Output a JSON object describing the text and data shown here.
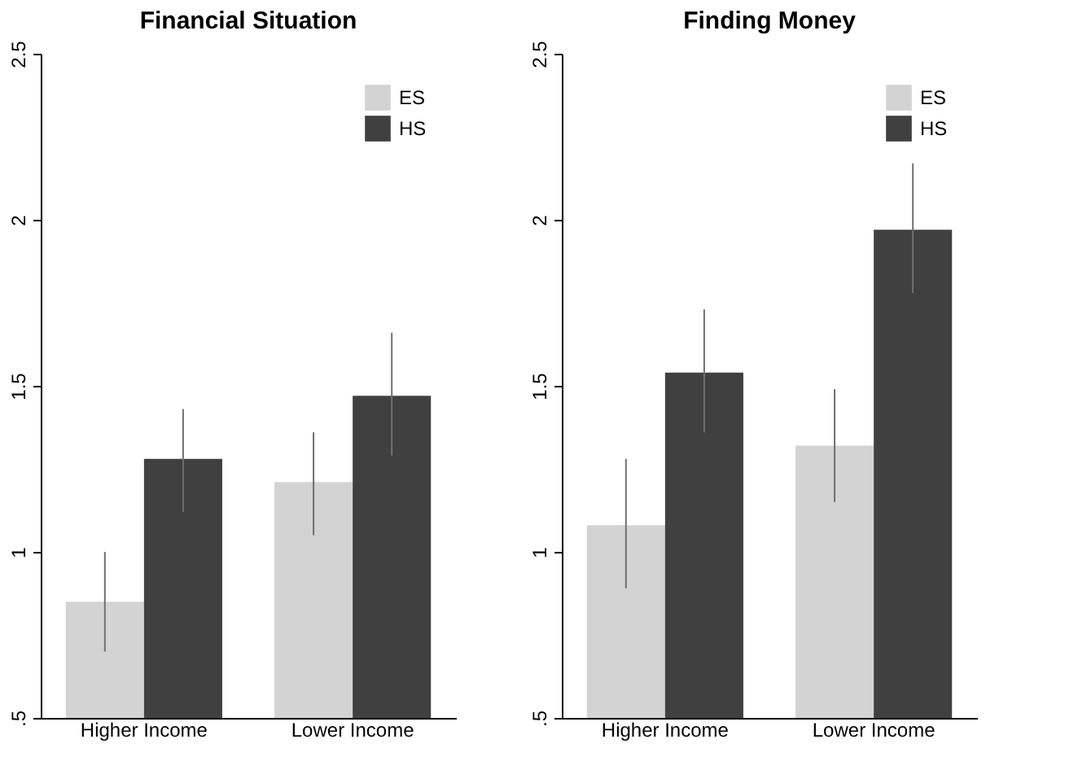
{
  "chart_data": [
    {
      "type": "bar",
      "title": "Financial Situation",
      "categories": [
        "Higher Income",
        "Lower Income"
      ],
      "series": [
        {
          "name": "ES",
          "color": "#d3d3d3",
          "values": [
            0.85,
            1.21
          ],
          "errors": [
            [
              0.7,
              1.0
            ],
            [
              1.05,
              1.36
            ]
          ]
        },
        {
          "name": "HS",
          "color": "#404040",
          "values": [
            1.28,
            1.47
          ],
          "errors": [
            [
              1.12,
              1.43
            ],
            [
              1.29,
              1.66
            ]
          ]
        }
      ],
      "ylim": [
        0.5,
        2.5
      ],
      "yticks": [
        {
          "value": 0.5,
          "label": ".5"
        },
        1,
        1.5,
        2,
        2.5
      ],
      "grid": false,
      "legend": "top right"
    },
    {
      "type": "bar",
      "title": "Finding Money",
      "categories": [
        "Higher Income",
        "Lower Income"
      ],
      "series": [
        {
          "name": "ES",
          "color": "#d3d3d3",
          "values": [
            1.08,
            1.32
          ],
          "errors": [
            [
              0.89,
              1.28
            ],
            [
              1.15,
              1.49
            ]
          ]
        },
        {
          "name": "HS",
          "color": "#404040",
          "values": [
            1.54,
            1.97
          ],
          "errors": [
            [
              1.36,
              1.73
            ],
            [
              1.78,
              2.17
            ]
          ]
        }
      ],
      "ylim": [
        0.5,
        2.5
      ],
      "yticks": [
        {
          "value": 0.5,
          "label": ".5"
        },
        1,
        1.5,
        2,
        2.5
      ],
      "grid": false,
      "legend": "top right"
    }
  ]
}
